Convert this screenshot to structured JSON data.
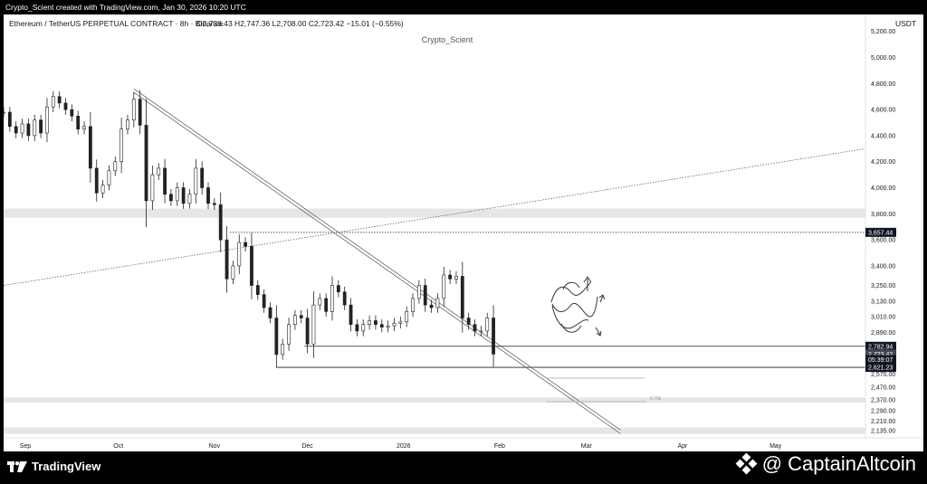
{
  "top_caption": "Crypto_Scient created with TradingView.com, Jan 30, 2026 10:20 UTC",
  "chart_header": {
    "symbol": "Ethereum / TetherUS PERPETUAL CONTRACT · 8h · Binance",
    "ohlc": "O2,738.43  H2,747.36  L2,708.00  C2,723.42  −15.01 (−0.55%)"
  },
  "watermark": "Crypto_Scient",
  "currency": "USDT",
  "footer": {
    "tradingview_label": "TradingView",
    "brand_label": "@ CaptainAltcoin"
  },
  "chart_data": {
    "type": "candlestick",
    "timeframe": "8h",
    "x_tick_labels": [
      "Sep",
      "Oct",
      "Nov",
      "Dec",
      "2026",
      "Feb",
      "Mar",
      "Apr",
      "May"
    ],
    "y_tick_labels": [
      5200,
      5000,
      4800,
      4600,
      4400,
      4200,
      4000,
      3800,
      3600,
      3400,
      3250,
      3130,
      3010,
      2890,
      2570,
      2470,
      2370,
      2290,
      2210,
      2135
    ],
    "y_range": [
      2080,
      5330
    ],
    "price_tags": [
      {
        "label": "3,657.44",
        "value": 3657.44
      },
      {
        "label": "2,782.94",
        "value": 2782.94
      },
      {
        "label": "2,723.42",
        "value": 2723.42
      },
      {
        "label": "05:39:07",
        "value": 2680
      },
      {
        "label": "2,621.23",
        "value": 2621.23
      }
    ],
    "horizontal_levels": [
      {
        "value": 3657.44,
        "style": "dotted",
        "from_date": "2025-11-06"
      },
      {
        "value": 2782.94,
        "style": "solid",
        "from_date": "2025-11-30"
      },
      {
        "value": 2621.23,
        "style": "solid",
        "from_date": "2025-11-21"
      }
    ],
    "zones": [
      {
        "from": 3770,
        "to": 3840
      },
      {
        "from": 2350,
        "to": 2390
      },
      {
        "from": 2110,
        "to": 2160
      }
    ],
    "trendlines": [
      {
        "style": "double",
        "from": {
          "date": "2025-10-06",
          "price": 4760
        },
        "to": {
          "date": "2026-03-12",
          "price": 2140
        }
      },
      {
        "style": "dotted",
        "from": {
          "date": "2025-08-25",
          "price": 3250
        },
        "to": {
          "date": "2026-05-30",
          "price": 4300
        }
      }
    ],
    "measure_label": "8.79k",
    "candles": [
      {
        "date": "2025-08-25",
        "close": 4580
      },
      {
        "date": "2025-08-27",
        "close": 4470
      },
      {
        "date": "2025-08-29",
        "close": 4420
      },
      {
        "date": "2025-08-31",
        "close": 4490
      },
      {
        "date": "2025-09-02",
        "close": 4400
      },
      {
        "date": "2025-09-04",
        "close": 4520
      },
      {
        "date": "2025-09-06",
        "close": 4420
      },
      {
        "date": "2025-09-08",
        "close": 4620
      },
      {
        "date": "2025-09-10",
        "close": 4700
      },
      {
        "date": "2025-09-12",
        "close": 4650
      },
      {
        "date": "2025-09-14",
        "close": 4600
      },
      {
        "date": "2025-09-16",
        "close": 4550
      },
      {
        "date": "2025-09-18",
        "close": 4450
      },
      {
        "date": "2025-09-20",
        "close": 4470
      },
      {
        "date": "2025-09-22",
        "close": 4150
      },
      {
        "date": "2025-09-24",
        "close": 3960
      },
      {
        "date": "2025-09-26",
        "close": 4020
      },
      {
        "date": "2025-09-28",
        "close": 4130
      },
      {
        "date": "2025-09-30",
        "close": 4200
      },
      {
        "date": "2025-10-02",
        "close": 4450
      },
      {
        "date": "2025-10-04",
        "close": 4520
      },
      {
        "date": "2025-10-06",
        "close": 4680
      },
      {
        "date": "2025-10-08",
        "close": 4480
      },
      {
        "date": "2025-10-10",
        "close": 3900
      },
      {
        "date": "2025-10-12",
        "close": 4100
      },
      {
        "date": "2025-10-14",
        "close": 4150
      },
      {
        "date": "2025-10-16",
        "close": 3950
      },
      {
        "date": "2025-10-18",
        "close": 3900
      },
      {
        "date": "2025-10-20",
        "close": 4000
      },
      {
        "date": "2025-10-22",
        "close": 3880
      },
      {
        "date": "2025-10-24",
        "close": 3950
      },
      {
        "date": "2025-10-26",
        "close": 4150
      },
      {
        "date": "2025-10-28",
        "close": 4000
      },
      {
        "date": "2025-10-30",
        "close": 3880
      },
      {
        "date": "2025-11-01",
        "close": 3870
      },
      {
        "date": "2025-11-03",
        "close": 3600
      },
      {
        "date": "2025-11-05",
        "close": 3300
      },
      {
        "date": "2025-11-07",
        "close": 3400
      },
      {
        "date": "2025-11-09",
        "close": 3580
      },
      {
        "date": "2025-11-11",
        "close": 3550
      },
      {
        "date": "2025-11-13",
        "close": 3250
      },
      {
        "date": "2025-11-15",
        "close": 3180
      },
      {
        "date": "2025-11-17",
        "close": 3080
      },
      {
        "date": "2025-11-19",
        "close": 3000
      },
      {
        "date": "2025-11-21",
        "close": 2720
      },
      {
        "date": "2025-11-23",
        "close": 2800
      },
      {
        "date": "2025-11-25",
        "close": 2950
      },
      {
        "date": "2025-11-27",
        "close": 3020
      },
      {
        "date": "2025-11-29",
        "close": 3000
      },
      {
        "date": "2025-12-01",
        "close": 2800
      },
      {
        "date": "2025-12-03",
        "close": 3100
      },
      {
        "date": "2025-12-05",
        "close": 3150
      },
      {
        "date": "2025-12-07",
        "close": 3050
      },
      {
        "date": "2025-12-09",
        "close": 3250
      },
      {
        "date": "2025-12-11",
        "close": 3200
      },
      {
        "date": "2025-12-13",
        "close": 3100
      },
      {
        "date": "2025-12-15",
        "close": 2950
      },
      {
        "date": "2025-12-17",
        "close": 2900
      },
      {
        "date": "2025-12-19",
        "close": 2950
      },
      {
        "date": "2025-12-21",
        "close": 2980
      },
      {
        "date": "2025-12-23",
        "close": 2950
      },
      {
        "date": "2025-12-25",
        "close": 2930
      },
      {
        "date": "2025-12-27",
        "close": 2940
      },
      {
        "date": "2025-12-29",
        "close": 2960
      },
      {
        "date": "2025-12-31",
        "close": 2970
      },
      {
        "date": "2026-01-02",
        "close": 3050
      },
      {
        "date": "2026-01-04",
        "close": 3150
      },
      {
        "date": "2026-01-06",
        "close": 3250
      },
      {
        "date": "2026-01-08",
        "close": 3100
      },
      {
        "date": "2026-01-10",
        "close": 3080
      },
      {
        "date": "2026-01-12",
        "close": 3150
      },
      {
        "date": "2026-01-14",
        "close": 3330
      },
      {
        "date": "2026-01-16",
        "close": 3300
      },
      {
        "date": "2026-01-18",
        "close": 3320
      },
      {
        "date": "2026-01-20",
        "close": 3000
      },
      {
        "date": "2026-01-22",
        "close": 2950
      },
      {
        "date": "2026-01-24",
        "close": 2900
      },
      {
        "date": "2026-01-26",
        "close": 2900
      },
      {
        "date": "2026-01-28",
        "close": 3000
      },
      {
        "date": "2026-01-30",
        "close": 2723
      }
    ]
  }
}
